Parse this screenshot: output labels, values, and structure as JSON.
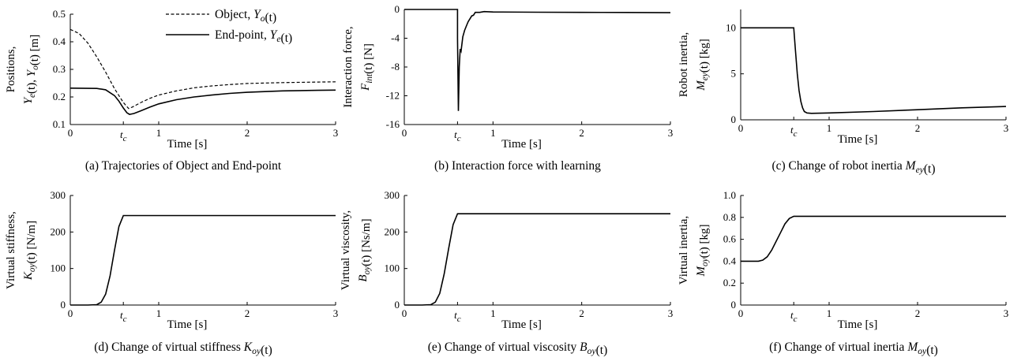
{
  "chart_data": [
    {
      "id": "a",
      "type": "line",
      "ylabel_lines": [
        "Positions,",
        "Ye(t), Yo(t) [m]"
      ],
      "xlabel": "Time [s]",
      "caption": "(a) Trajectories of Object and End-point",
      "xlim": [
        0,
        3
      ],
      "ylim": [
        0.1,
        0.5
      ],
      "xticks": [
        "0",
        "tc",
        "1",
        "2",
        "3"
      ],
      "xtick_values": [
        0,
        0.6,
        1,
        2,
        3
      ],
      "yticks": [
        "0.1",
        "0.2",
        "0.3",
        "0.4",
        "0.5"
      ],
      "ytick_values": [
        0.1,
        0.2,
        0.3,
        0.4,
        0.5
      ],
      "legend": {
        "position": "top-right",
        "entries": [
          "Object, Yo(t)",
          "End-point, Ye(t)"
        ]
      },
      "series": [
        {
          "name": "Object, Yo(t)",
          "style": "dashed",
          "x": [
            0,
            0.1,
            0.2,
            0.3,
            0.4,
            0.5,
            0.6,
            0.66,
            0.7,
            0.8,
            0.9,
            1.0,
            1.2,
            1.4,
            1.6,
            1.8,
            2.0,
            2.4,
            2.8,
            3.0
          ],
          "y": [
            0.445,
            0.43,
            0.395,
            0.345,
            0.29,
            0.23,
            0.18,
            0.158,
            0.163,
            0.18,
            0.195,
            0.207,
            0.222,
            0.233,
            0.24,
            0.245,
            0.249,
            0.252,
            0.254,
            0.255
          ]
        },
        {
          "name": "End-point, Ye(t)",
          "style": "solid",
          "x": [
            0,
            0.3,
            0.4,
            0.5,
            0.55,
            0.6,
            0.64,
            0.67,
            0.72,
            0.8,
            0.9,
            1.0,
            1.2,
            1.4,
            1.6,
            1.8,
            2.0,
            2.4,
            2.8,
            3.0
          ],
          "y": [
            0.232,
            0.231,
            0.226,
            0.205,
            0.185,
            0.16,
            0.143,
            0.137,
            0.14,
            0.15,
            0.163,
            0.175,
            0.19,
            0.2,
            0.207,
            0.213,
            0.217,
            0.222,
            0.224,
            0.225
          ]
        }
      ]
    },
    {
      "id": "b",
      "type": "line",
      "ylabel_lines": [
        "Interaction force,",
        "Fint(t) [N]"
      ],
      "xlabel": "Time [s]",
      "caption": "(b) Interaction force with learning",
      "xlim": [
        0,
        3
      ],
      "ylim": [
        -16,
        0
      ],
      "xticks": [
        "0",
        "tc",
        "1",
        "2",
        "3"
      ],
      "xtick_values": [
        0,
        0.6,
        1,
        2,
        3
      ],
      "yticks": [
        "0",
        "-4",
        "-8",
        "-12",
        "-16"
      ],
      "ytick_values": [
        0,
        -4,
        -8,
        -12,
        -16
      ],
      "series": [
        {
          "name": "",
          "style": "solid",
          "x": [
            0,
            0.6,
            0.6,
            0.61,
            0.62,
            0.63,
            0.64,
            0.66,
            0.68,
            0.7,
            0.72,
            0.74,
            0.76,
            0.78,
            0.8,
            0.85,
            0.9,
            1.0,
            1.5,
            2.0,
            2.5,
            3.0
          ],
          "y": [
            0,
            0,
            -4,
            -14.1,
            -8,
            -5.5,
            -5.8,
            -3.8,
            -2.9,
            -2.3,
            -1.7,
            -1.3,
            -0.9,
            -0.8,
            -0.4,
            -0.4,
            -0.3,
            -0.35,
            -0.38,
            -0.4,
            -0.42,
            -0.45
          ]
        }
      ]
    },
    {
      "id": "c",
      "type": "line",
      "ylabel_lines": [
        "Robot inertia,",
        "Mey(t) [kg]"
      ],
      "xlabel": "Time [s]",
      "caption": "(c) Change of robot inertia Mey(t)",
      "xlim": [
        0,
        3
      ],
      "ylim": [
        0,
        12
      ],
      "xticks": [
        "0",
        "tc",
        "1",
        "2",
        "3"
      ],
      "xtick_values": [
        0,
        0.6,
        1,
        2,
        3
      ],
      "yticks": [
        "0",
        "5",
        "10"
      ],
      "ytick_values": [
        0,
        5,
        10
      ],
      "series": [
        {
          "name": "",
          "style": "solid",
          "x": [
            0,
            0.6,
            0.62,
            0.64,
            0.66,
            0.68,
            0.7,
            0.72,
            0.75,
            0.8,
            1.0,
            1.5,
            2.0,
            2.5,
            3.0
          ],
          "y": [
            10,
            10,
            7.5,
            5,
            3.2,
            2,
            1.3,
            0.9,
            0.75,
            0.7,
            0.75,
            0.9,
            1.1,
            1.3,
            1.45
          ]
        }
      ]
    },
    {
      "id": "d",
      "type": "line",
      "ylabel_lines": [
        "Virtual stiffness,",
        "Koy(t) [N/m]"
      ],
      "xlabel": "Time [s]",
      "caption": "(d) Change of virtual stiffness Koy(t)",
      "xlim": [
        0,
        3
      ],
      "ylim": [
        0,
        300
      ],
      "xticks": [
        "0",
        "tc",
        "1",
        "2",
        "3"
      ],
      "xtick_values": [
        0,
        0.6,
        1,
        2,
        3
      ],
      "yticks": [
        "0",
        "100",
        "200",
        "300"
      ],
      "ytick_values": [
        0,
        100,
        200,
        300
      ],
      "series": [
        {
          "name": "",
          "style": "solid",
          "x": [
            0,
            0.2,
            0.3,
            0.35,
            0.4,
            0.45,
            0.5,
            0.55,
            0.6,
            1.0,
            2.0,
            3.0
          ],
          "y": [
            0,
            0,
            1,
            8,
            30,
            80,
            150,
            215,
            245,
            245,
            245,
            245
          ]
        }
      ]
    },
    {
      "id": "e",
      "type": "line",
      "ylabel_lines": [
        "Virtual viscosity,",
        "Boy(t) [Ns/m]"
      ],
      "xlabel": "Time [s]",
      "caption": "(e) Change of virtual viscosity Boy(t)",
      "xlim": [
        0,
        3
      ],
      "ylim": [
        0,
        300
      ],
      "xticks": [
        "0",
        "tc",
        "1",
        "2",
        "3"
      ],
      "xtick_values": [
        0,
        0.6,
        1,
        2,
        3
      ],
      "yticks": [
        "0",
        "100",
        "200",
        "300"
      ],
      "ytick_values": [
        0,
        100,
        200,
        300
      ],
      "series": [
        {
          "name": "",
          "style": "solid",
          "x": [
            0,
            0.2,
            0.3,
            0.35,
            0.4,
            0.45,
            0.5,
            0.55,
            0.6,
            1.0,
            2.0,
            3.0
          ],
          "y": [
            0,
            0,
            1,
            8,
            32,
            85,
            155,
            220,
            250,
            250,
            250,
            250
          ]
        }
      ]
    },
    {
      "id": "f",
      "type": "line",
      "ylabel_lines": [
        "Virtual inertia,",
        "Moy(t) [kg]"
      ],
      "xlabel": "Time [s]",
      "caption": "(f) Change of virtual inertia Moy(t)",
      "xlim": [
        0,
        3
      ],
      "ylim": [
        0,
        1.0
      ],
      "xticks": [
        "0",
        "tc",
        "1",
        "2",
        "3"
      ],
      "xtick_values": [
        0,
        0.6,
        1,
        2,
        3
      ],
      "yticks": [
        "0",
        "0.2",
        "0.4",
        "0.6",
        "0.8",
        "1.0"
      ],
      "ytick_values": [
        0,
        0.2,
        0.4,
        0.6,
        0.8,
        1.0
      ],
      "series": [
        {
          "name": "",
          "style": "solid",
          "x": [
            0,
            0.2,
            0.25,
            0.3,
            0.35,
            0.4,
            0.45,
            0.5,
            0.55,
            0.6,
            1.0,
            2.0,
            3.0
          ],
          "y": [
            0.4,
            0.4,
            0.41,
            0.44,
            0.5,
            0.58,
            0.66,
            0.74,
            0.79,
            0.81,
            0.81,
            0.81,
            0.81
          ]
        }
      ]
    }
  ]
}
